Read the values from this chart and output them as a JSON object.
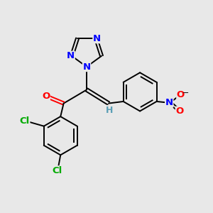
{
  "background_color": "#e8e8e8",
  "bond_color": "#000000",
  "atom_colors": {
    "N": "#0000ff",
    "O": "#ff0000",
    "Cl": "#00aa00",
    "H": "#5a9eb5",
    "C": "#000000"
  },
  "figsize": [
    3.0,
    3.0
  ],
  "dpi": 100
}
